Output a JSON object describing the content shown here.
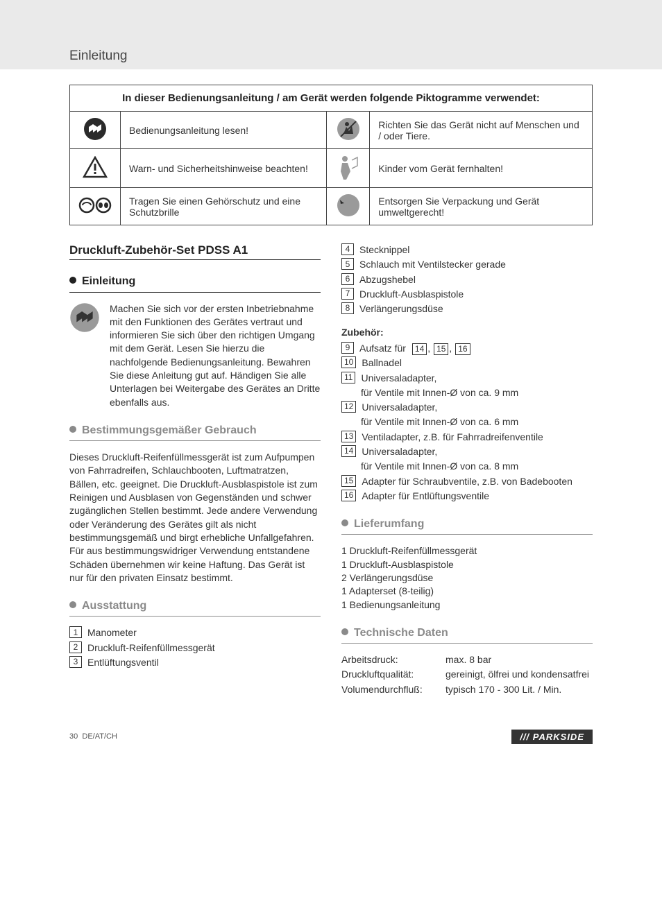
{
  "header": {
    "title": "Einleitung"
  },
  "pict_table": {
    "caption": "In dieser Bedienungsanleitung / am Gerät werden folgende Piktogramme verwendet:",
    "rows": [
      {
        "left_icon": "read-manual-icon",
        "left_text": "Bedienungsanleitung lesen!",
        "right_icon": "no-people-icon",
        "right_text": "Richten Sie das Gerät nicht auf Menschen und / oder Tiere."
      },
      {
        "left_icon": "warning-icon",
        "left_text": "Warn- und Sicherheitshinweise beachten!",
        "right_icon": "no-children-icon",
        "right_text": "Kinder vom Gerät fernhalten!"
      },
      {
        "left_icon": "ppe-icon",
        "left_text": "Tragen Sie einen Gehörschutz und eine Schutzbrille",
        "right_icon": "recycle-icon",
        "right_text": "Entsorgen Sie Verpackung und Gerät umweltgerecht!"
      }
    ]
  },
  "product_heading": "Druckluft-Zubehör-Set PDSS A1",
  "sections": {
    "einleitung": {
      "title": "Einleitung",
      "para": "Machen Sie sich vor der ersten Inbetriebnahme mit den Funktionen des Gerätes vertraut und informieren Sie sich über den richtigen Umgang mit dem Gerät. Lesen Sie hierzu die nachfolgende Bedienungsanleitung. Bewahren Sie diese Anleitung gut auf. Händigen Sie alle Unterlagen bei Weitergabe des Gerätes an Dritte ebenfalls aus."
    },
    "bestimmung": {
      "title": "Bestimmungsgemäßer Gebrauch",
      "para": "Dieses Druckluft-Reifenfüllmessgerät ist zum Aufpumpen von Fahrradreifen, Schlauchbooten, Luftmatratzen, Bällen, etc. geeignet. Die Druckluft-Ausblaspistole ist zum Reinigen und Ausblasen von Gegenständen und schwer zugänglichen Stellen bestimmt. Jede andere Verwendung oder Veränderung des Gerätes gilt als nicht bestimmungsgemäß und birgt erhebliche Unfallgefahren. Für aus bestimmungswidriger Verwendung entstandene Schäden übernehmen wir keine Haftung. Das Gerät ist nur für den privaten Einsatz bestimmt."
    },
    "ausstattung": {
      "title": "Ausstattung",
      "items_left": [
        {
          "n": "1",
          "t": "Manometer"
        },
        {
          "n": "2",
          "t": "Druckluft-Reifenfüllmessgerät"
        },
        {
          "n": "3",
          "t": "Entlüftungsventil"
        }
      ],
      "items_right": [
        {
          "n": "4",
          "t": "Stecknippel"
        },
        {
          "n": "5",
          "t": "Schlauch mit Ventilstecker gerade"
        },
        {
          "n": "6",
          "t": "Abzugshebel"
        },
        {
          "n": "7",
          "t": "Druckluft-Ausblaspistole"
        },
        {
          "n": "8",
          "t": "Verlängerungsdüse"
        }
      ],
      "zub_title": "Zubehör:",
      "zub_items": [
        {
          "n": "9",
          "t": "Aufsatz für",
          "refs": [
            "14",
            "15",
            "16"
          ]
        },
        {
          "n": "10",
          "t": "Ballnadel"
        },
        {
          "n": "11",
          "t": "Universaladapter,",
          "sub": "für Ventile mit Innen-Ø von ca. 9 mm"
        },
        {
          "n": "12",
          "t": "Universaladapter,",
          "sub": "für Ventile mit Innen-Ø von ca. 6 mm"
        },
        {
          "n": "13",
          "t": "Ventiladapter, z.B. für Fahrradreifenventile"
        },
        {
          "n": "14",
          "t": "Universaladapter,",
          "sub": "für Ventile mit Innen-Ø von ca. 8 mm"
        },
        {
          "n": "15",
          "t": "Adapter für Schraubventile, z.B. von Badebooten"
        },
        {
          "n": "16",
          "t": "Adapter für Entlüftungsventile"
        }
      ]
    },
    "lieferumfang": {
      "title": "Lieferumfang",
      "items": [
        "1 Druckluft-Reifenfüllmessgerät",
        "1 Druckluft-Ausblaspistole",
        "2 Verlängerungsdüse",
        "1 Adapterset (8-teilig)",
        "1 Bedienungsanleitung"
      ]
    },
    "technische": {
      "title": "Technische Daten",
      "rows": [
        {
          "label": "Arbeitsdruck:",
          "value": "max. 8 bar"
        },
        {
          "label": "Druckluftqualität:",
          "value": "gereinigt, ölfrei und kondensatfrei"
        },
        {
          "label": "Volumendurchfluß:",
          "value": "typisch 170 - 300 Lit. / Min."
        }
      ]
    }
  },
  "footer": {
    "page": "30",
    "locale": "DE/AT/CH",
    "brand": "/// PARKSIDE"
  },
  "icons": {
    "circle_bg": "#9a9a9a",
    "circle_fg": "#ffffff"
  }
}
